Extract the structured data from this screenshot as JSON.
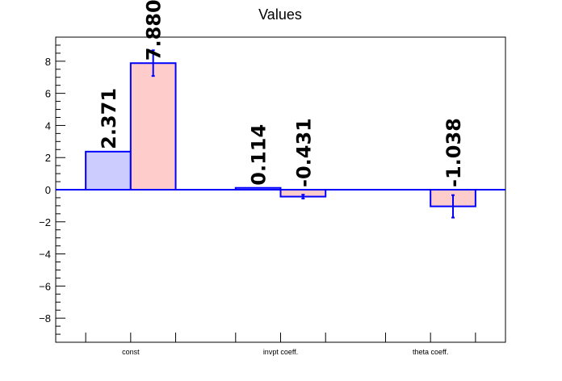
{
  "chart_data": {
    "type": "bar",
    "title": "Values",
    "categories": [
      "const",
      "invpt coeff.",
      "theta coeff."
    ],
    "ylim": [
      -9.5,
      9.5
    ],
    "y_ticks": [
      -8,
      -6,
      -4,
      -2,
      0,
      2,
      4,
      6,
      8
    ],
    "y_tick_labels": [
      "−8",
      "−6",
      "−4",
      "−2",
      "0",
      "2",
      "4",
      "6",
      "8"
    ],
    "grid": false,
    "legend": "none",
    "series": [
      {
        "color_fill": "#ccccff",
        "color_line": "#0000ff",
        "values": [
          2.371,
          0.114,
          null
        ],
        "errors": [
          0,
          0,
          null
        ],
        "labels": [
          "2.371",
          "0.114",
          ""
        ]
      },
      {
        "color_fill": "#ffcccc",
        "color_line": "#0000ff",
        "values": [
          7.88,
          -0.431,
          -1.038
        ],
        "errors": [
          0.8,
          0.12,
          0.7
        ],
        "labels": [
          "7.880",
          "-0.431",
          "-1.038"
        ]
      }
    ]
  }
}
